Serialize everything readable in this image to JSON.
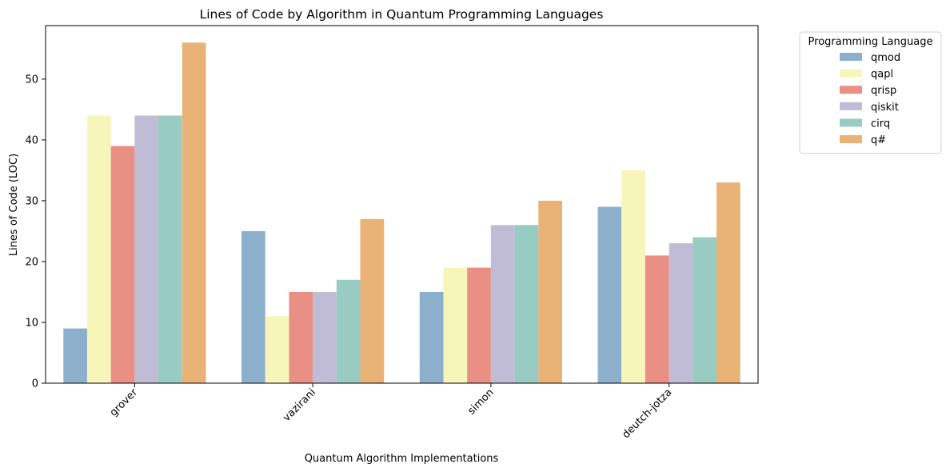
{
  "chart_data": {
    "type": "bar",
    "title": "Lines of Code by Algorithm in Quantum Programming Languages",
    "xlabel": "Quantum Algorithm Implementations",
    "ylabel": "Lines of Code (LOC)",
    "categories": [
      "grover",
      "vazirani",
      "simon",
      "deutch-jotza"
    ],
    "ylim": [
      0,
      58.8
    ],
    "yticks": [
      "0",
      "10",
      "20",
      "30",
      "40",
      "50"
    ],
    "grid": false,
    "legend": {
      "title": "Programming Language",
      "placement": "outside top-right"
    },
    "series": [
      {
        "name": "qmod",
        "color": "#8cb0cb",
        "values": [
          9,
          25,
          15,
          29
        ]
      },
      {
        "name": "qapl",
        "color": "#f7f6ba",
        "values": [
          44,
          11,
          19,
          35
        ]
      },
      {
        "name": "qrisp",
        "color": "#e98f84",
        "values": [
          39,
          15,
          19,
          21
        ]
      },
      {
        "name": "qiskit",
        "color": "#c1bcd5",
        "values": [
          44,
          15,
          26,
          23
        ]
      },
      {
        "name": "cirq",
        "color": "#98cbc1",
        "values": [
          44,
          17,
          26,
          24
        ]
      },
      {
        "name": "q#",
        "color": "#e9b276",
        "values": [
          56,
          27,
          30,
          33
        ]
      }
    ]
  }
}
